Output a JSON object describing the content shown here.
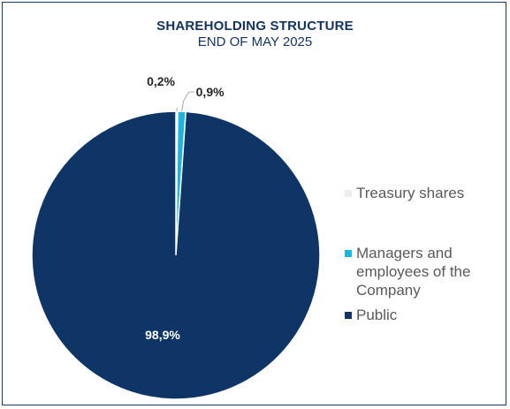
{
  "chart_data": {
    "type": "pie",
    "title": "SHAREHOLDING STRUCTURE",
    "subtitle": "END OF MAY 2025",
    "slices": [
      {
        "name": "Treasury shares",
        "value": 0.2,
        "label": "0,2%",
        "color": "#eeeeee"
      },
      {
        "name": "Managers and employees of the Company",
        "value": 0.9,
        "label": "0,9%",
        "color": "#1cb5e0"
      },
      {
        "name": "Public",
        "value": 98.9,
        "label": "98,9%",
        "color": "#0f3566"
      }
    ],
    "legend_position": "right"
  }
}
